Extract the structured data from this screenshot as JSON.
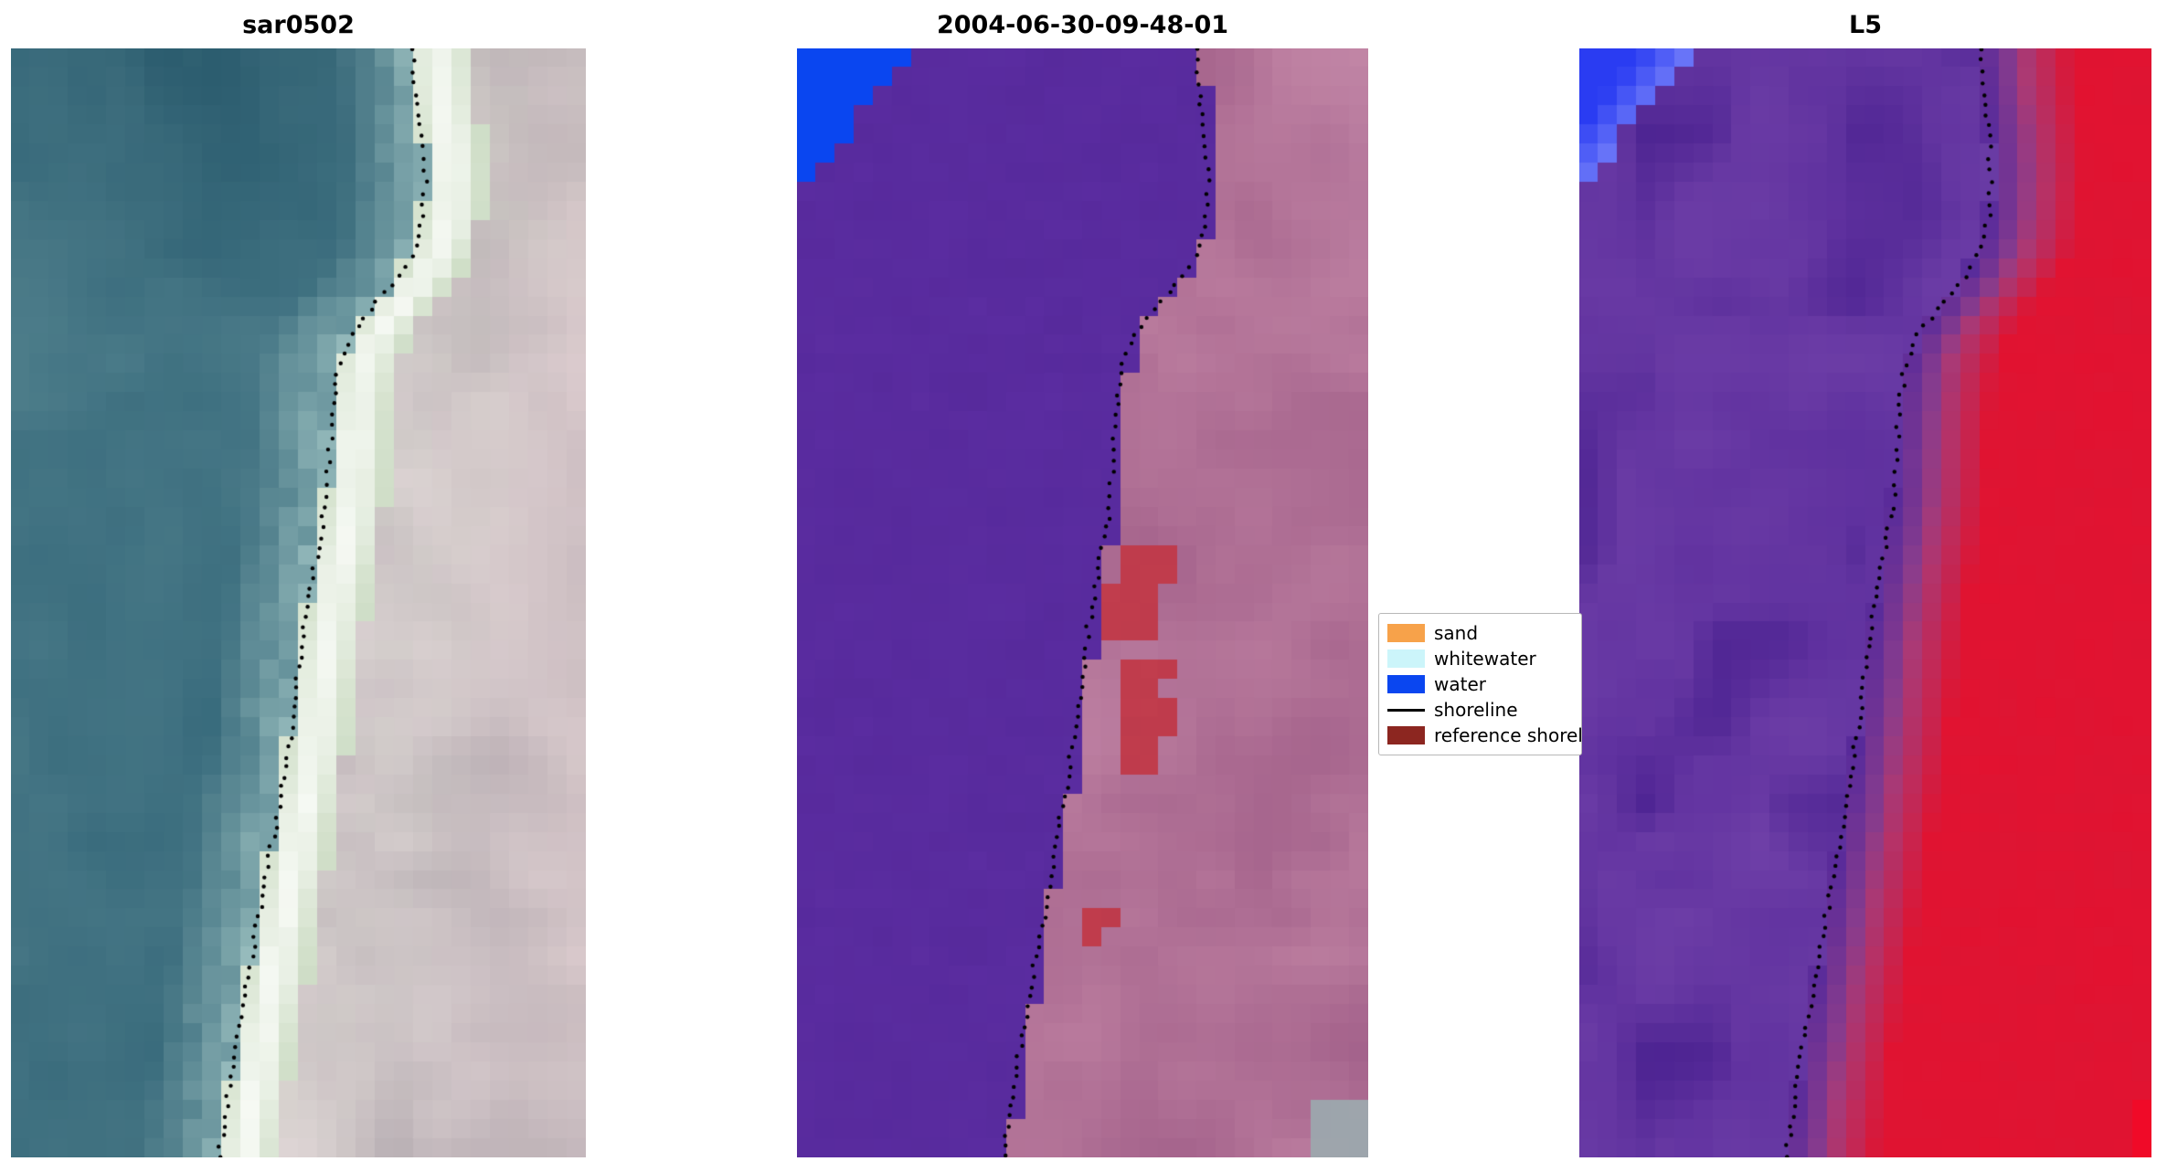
{
  "figure": {
    "background": "#ffffff"
  },
  "chart_data": {
    "type": "heatmap",
    "subtype": "satellite-image-classification-panels",
    "panels": [
      {
        "id": "sar0502",
        "title": "sar0502",
        "kind": "sar",
        "palette": {
          "water_deep": "#1e4f63",
          "water_mid": "#35687a",
          "water_light": "#53828e",
          "surf": "#bfded8",
          "sand_bright": "#f2f7ee",
          "land_gray": "#b3a9af",
          "land_light": "#e2d7d8",
          "land_pink": "#d9c4c7",
          "land_green": "#ceddc6"
        }
      },
      {
        "id": "classified",
        "title": "2004-06-30-09-48-01",
        "kind": "classified",
        "palette": {
          "water_purple": "#5b2da1",
          "water_purple2": "#532798",
          "corner_blue": "#0a46f0",
          "land_base": "#a05e88",
          "land_light": "#bd7fa0",
          "land_pink": "#c98fae",
          "red_patch": "#c23d4d",
          "gray_patch": "#9fa6ad"
        }
      },
      {
        "id": "L5",
        "title": "L5",
        "kind": "l5",
        "palette": {
          "purple": "#5a2c9c",
          "purple_dark": "#471f8e",
          "purple_light": "#7a4aae",
          "corner_blue": "#2a3cf2",
          "corner_blue_light": "#6a76f8",
          "pink_trans": "#a04486",
          "red": "#dd1533",
          "red_bright": "#f00a28"
        }
      }
    ],
    "legend": {
      "items": [
        {
          "label": "sand",
          "color": "#f7a24a",
          "type": "patch"
        },
        {
          "label": "whitewater",
          "color": "#ccf5fa",
          "type": "patch"
        },
        {
          "label": "water",
          "color": "#0a46f0",
          "type": "patch"
        },
        {
          "label": "shoreline",
          "color": "#000000",
          "type": "line"
        },
        {
          "label": "reference shoreline",
          "color": "#8c2620",
          "type": "patch"
        }
      ]
    },
    "shoreline": {
      "color": "#000000",
      "points": [
        [
          0.0,
          0.7
        ],
        [
          0.04,
          0.705
        ],
        [
          0.08,
          0.715
        ],
        [
          0.12,
          0.72
        ],
        [
          0.155,
          0.715
        ],
        [
          0.185,
          0.7
        ],
        [
          0.21,
          0.668
        ],
        [
          0.235,
          0.625
        ],
        [
          0.26,
          0.59
        ],
        [
          0.29,
          0.568
        ],
        [
          0.33,
          0.558
        ],
        [
          0.37,
          0.553
        ],
        [
          0.41,
          0.548
        ],
        [
          0.45,
          0.535
        ],
        [
          0.49,
          0.52
        ],
        [
          0.53,
          0.508
        ],
        [
          0.57,
          0.498
        ],
        [
          0.61,
          0.488
        ],
        [
          0.65,
          0.477
        ],
        [
          0.69,
          0.463
        ],
        [
          0.73,
          0.449
        ],
        [
          0.77,
          0.436
        ],
        [
          0.81,
          0.422
        ],
        [
          0.85,
          0.408
        ],
        [
          0.89,
          0.394
        ],
        [
          0.93,
          0.381
        ],
        [
          0.965,
          0.371
        ],
        [
          1.0,
          0.362
        ]
      ]
    }
  }
}
